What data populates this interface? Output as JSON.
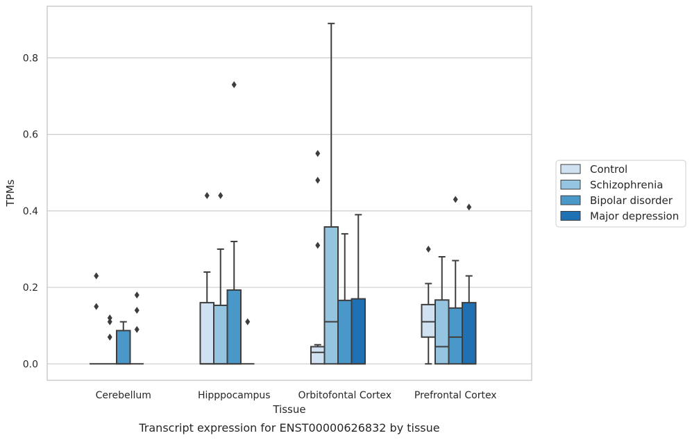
{
  "caption": "Transcript expression for ENST00000626832 by tissue",
  "chart_data": {
    "type": "box",
    "xlabel": "Tissue",
    "ylabel": "TPMs",
    "categories": [
      "Cerebellum",
      "Hipppocampus",
      "Orbitofontal Cortex",
      "Prefrontal Cortex"
    ],
    "ylim": [
      -0.043,
      0.935
    ],
    "yticks": [
      0.0,
      0.2,
      0.4,
      0.6,
      0.8
    ],
    "ytick_labels": [
      "0.0",
      "0.2",
      "0.4",
      "0.6",
      "0.8"
    ],
    "grid": "horizontal",
    "legend_position": "right",
    "colors": {
      "Control": "#d0e1f2",
      "Schizophrenia": "#94c4df",
      "Bipolar disorder": "#4a98c9",
      "Major depression": "#2070b4",
      "edge": "#3d3d3d",
      "grid": "#cccccc",
      "frame": "#cccccc"
    },
    "series": [
      {
        "name": "Control",
        "boxes": [
          {
            "category": "Cerebellum",
            "whislo": 0.0,
            "q1": 0.0,
            "med": 0.0,
            "q3": 0.0,
            "whishi": 0.0,
            "fliers": [
              0.23,
              0.15
            ]
          },
          {
            "category": "Hipppocampus",
            "whislo": 0.0,
            "q1": 0.0,
            "med": 0.0,
            "q3": 0.16,
            "whishi": 0.24,
            "fliers": [
              0.44
            ]
          },
          {
            "category": "Orbitofontal Cortex",
            "whislo": 0.0,
            "q1": 0.0,
            "med": 0.03,
            "q3": 0.045,
            "whishi": 0.05,
            "fliers": [
              0.55,
              0.48,
              0.31
            ]
          },
          {
            "category": "Prefrontal Cortex",
            "whislo": 0.0,
            "q1": 0.07,
            "med": 0.11,
            "q3": 0.155,
            "whishi": 0.21,
            "fliers": [
              0.3
            ]
          }
        ]
      },
      {
        "name": "Schizophrenia",
        "boxes": [
          {
            "category": "Cerebellum",
            "whislo": 0.0,
            "q1": 0.0,
            "med": 0.0,
            "q3": 0.0,
            "whishi": 0.0,
            "fliers": [
              0.12,
              0.11,
              0.07
            ]
          },
          {
            "category": "Hipppocampus",
            "whislo": 0.0,
            "q1": 0.0,
            "med": 0.0,
            "q3": 0.153,
            "whishi": 0.3,
            "fliers": [
              0.44
            ]
          },
          {
            "category": "Orbitofontal Cortex",
            "whislo": 0.0,
            "q1": 0.0,
            "med": 0.11,
            "q3": 0.358,
            "whishi": 0.89,
            "fliers": []
          },
          {
            "category": "Prefrontal Cortex",
            "whislo": 0.0,
            "q1": 0.0,
            "med": 0.045,
            "q3": 0.167,
            "whishi": 0.28,
            "fliers": []
          }
        ]
      },
      {
        "name": "Bipolar disorder",
        "boxes": [
          {
            "category": "Cerebellum",
            "whislo": 0.0,
            "q1": 0.0,
            "med": 0.0,
            "q3": 0.087,
            "whishi": 0.11,
            "fliers": []
          },
          {
            "category": "Hipppocampus",
            "whislo": 0.0,
            "q1": 0.0,
            "med": 0.0,
            "q3": 0.193,
            "whishi": 0.32,
            "fliers": [
              0.73
            ]
          },
          {
            "category": "Orbitofontal Cortex",
            "whislo": 0.0,
            "q1": 0.0,
            "med": 0.0,
            "q3": 0.166,
            "whishi": 0.34,
            "fliers": []
          },
          {
            "category": "Prefrontal Cortex",
            "whislo": 0.0,
            "q1": 0.0,
            "med": 0.07,
            "q3": 0.146,
            "whishi": 0.27,
            "fliers": [
              0.43
            ]
          }
        ]
      },
      {
        "name": "Major depression",
        "boxes": [
          {
            "category": "Cerebellum",
            "whislo": 0.0,
            "q1": 0.0,
            "med": 0.0,
            "q3": 0.0,
            "whishi": 0.0,
            "fliers": [
              0.18,
              0.14,
              0.09
            ]
          },
          {
            "category": "Hipppocampus",
            "whislo": 0.0,
            "q1": 0.0,
            "med": 0.0,
            "q3": 0.0,
            "whishi": 0.0,
            "fliers": [
              0.11
            ]
          },
          {
            "category": "Orbitofontal Cortex",
            "whislo": 0.0,
            "q1": 0.0,
            "med": 0.0,
            "q3": 0.17,
            "whishi": 0.39,
            "fliers": []
          },
          {
            "category": "Prefrontal Cortex",
            "whislo": 0.0,
            "q1": 0.0,
            "med": 0.0,
            "q3": 0.16,
            "whishi": 0.23,
            "fliers": [
              0.41
            ]
          }
        ]
      }
    ]
  }
}
